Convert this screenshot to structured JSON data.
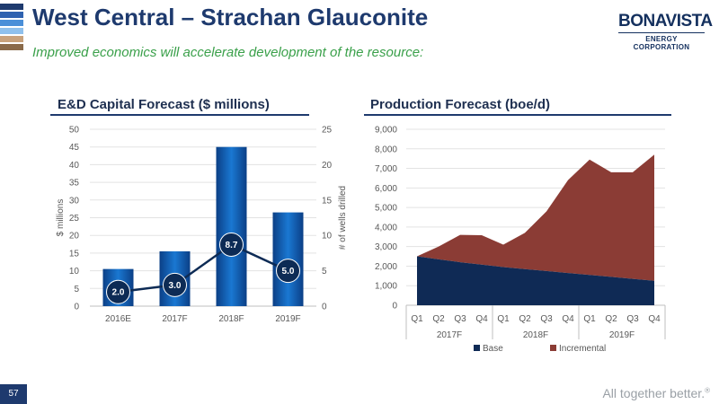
{
  "slide": {
    "title": "West Central – Strachan Glauconite",
    "subtitle": "Improved economics will accelerate development of the resource:",
    "logo_brand": "BONAVISTA",
    "logo_sub": "ENERGY CORPORATION",
    "page_number": "57",
    "tagline": "All together better.",
    "tagline_mark": "®",
    "stripe_colors": [
      "#1e3a6e",
      "#2f62b0",
      "#4a8fd8",
      "#8fc0ec",
      "#c9a27c",
      "#8a6a4a"
    ]
  },
  "chart_data": [
    {
      "type": "bar",
      "title": "E&D Capital Forecast ($ millions)",
      "categories": [
        "2016E",
        "2017F",
        "2018F",
        "2019F"
      ],
      "series": [
        {
          "values": [
            10.5,
            15.5,
            45.0,
            26.5
          ],
          "axis": "left",
          "color": "#1565c0"
        },
        {
          "type": "line",
          "values": [
            2.0,
            3.0,
            8.7,
            5.0
          ],
          "labels": [
            "2.0",
            "3.0",
            "8.7",
            "5.0"
          ],
          "axis": "right",
          "color": "#0d2b55"
        }
      ],
      "ylabel": "$ millions",
      "ylabel_right": "# of wells drilled",
      "ylim": [
        0,
        50
      ],
      "ylim_right": [
        0,
        25
      ],
      "yticks": [
        "0",
        "5",
        "10",
        "15",
        "20",
        "25",
        "30",
        "35",
        "40",
        "45",
        "50"
      ],
      "yticks_right": [
        "0",
        "5",
        "10",
        "15",
        "20",
        "25"
      ],
      "grid": true
    },
    {
      "type": "area",
      "title": "Production Forecast (boe/d)",
      "x": [
        "Q1",
        "Q2",
        "Q3",
        "Q4",
        "Q1",
        "Q2",
        "Q3",
        "Q4",
        "Q1",
        "Q2",
        "Q3",
        "Q4"
      ],
      "year_groups": [
        "2017F",
        "2018F",
        "2019F"
      ],
      "series": [
        {
          "name": "Base",
          "values": [
            2500,
            2350,
            2200,
            2080,
            1950,
            1850,
            1750,
            1650,
            1550,
            1450,
            1350,
            1250
          ],
          "color": "#0f2a55"
        },
        {
          "name": "Incremental",
          "values": [
            0,
            650,
            1400,
            1500,
            1150,
            1850,
            3050,
            4750,
            5900,
            5350,
            5450,
            6450
          ],
          "color": "#8b3c35"
        }
      ],
      "ylim": [
        0,
        9000
      ],
      "yticks": [
        "0",
        "1,000",
        "2,000",
        "3,000",
        "4,000",
        "5,000",
        "6,000",
        "7,000",
        "8,000",
        "9,000"
      ],
      "stacked": true,
      "legend_position": "bottom",
      "grid": true
    }
  ]
}
